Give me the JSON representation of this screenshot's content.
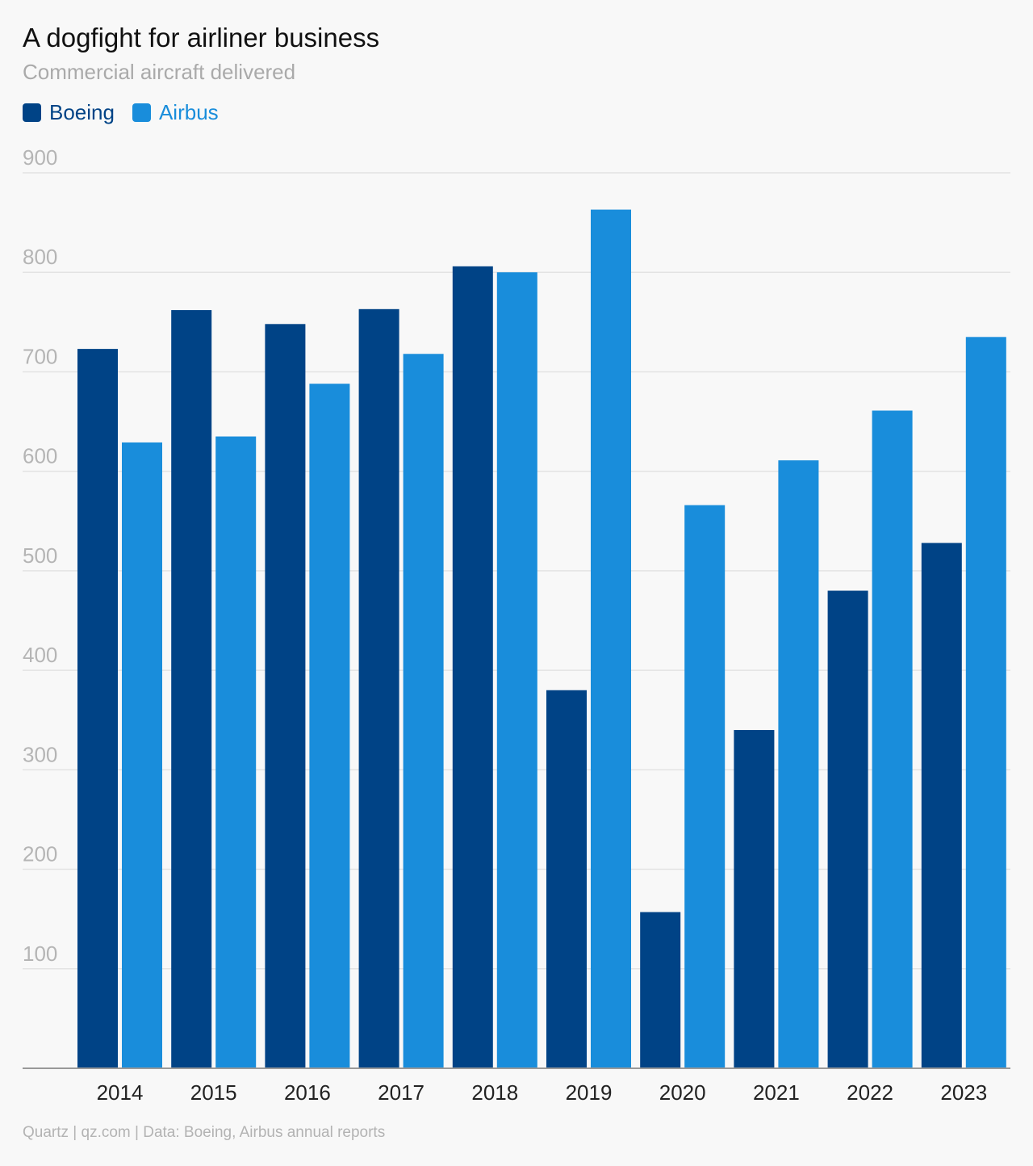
{
  "title": "A dogfight for airliner business",
  "subtitle": "Commercial aircraft delivered",
  "footer": "Quartz | qz.com | Data: Boeing, Airbus annual reports",
  "colors": {
    "boeing": "#004386",
    "airbus": "#198ddb",
    "grid": "#e3e3e3",
    "tick": "#b5b5b5",
    "xtick": "#222222",
    "axis": "#999999"
  },
  "chart_data": {
    "type": "bar",
    "title": "A dogfight for airliner business",
    "subtitle": "Commercial aircraft delivered",
    "categories": [
      "2014",
      "2015",
      "2016",
      "2017",
      "2018",
      "2019",
      "2020",
      "2021",
      "2022",
      "2023"
    ],
    "series": [
      {
        "name": "Boeing",
        "color": "#004386",
        "values": [
          723,
          762,
          748,
          763,
          806,
          380,
          157,
          340,
          480,
          528
        ]
      },
      {
        "name": "Airbus",
        "color": "#198ddb",
        "values": [
          629,
          635,
          688,
          718,
          800,
          863,
          566,
          611,
          661,
          735
        ]
      }
    ],
    "yticks": [
      "100",
      "200",
      "300",
      "400",
      "500",
      "600",
      "700",
      "800",
      "900"
    ],
    "ylim": [
      0,
      900
    ],
    "grid": true,
    "legend": "top-left"
  }
}
